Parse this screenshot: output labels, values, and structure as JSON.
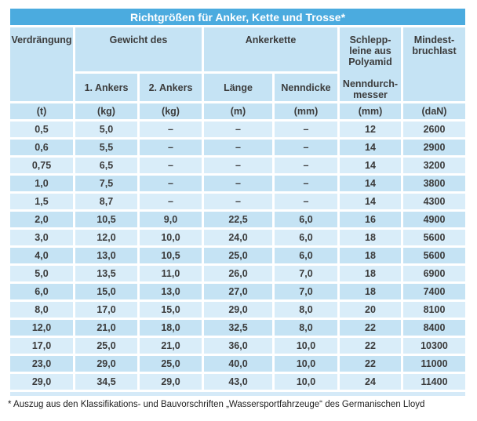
{
  "colors": {
    "title_bar": "#4babdf",
    "header_fill": "#c5e3f4",
    "row_light": "#d9edf9",
    "row_dark": "#c5e3f4",
    "bottom_strip": "#d5eaf8",
    "title_text": "#ffffff",
    "body_text": "#3b3b3b"
  },
  "table": {
    "title": "Richtgrößen für Anker, Kette und Trosse*",
    "header": {
      "displacement": "Verdrängung",
      "weight_group": "Gewicht des",
      "anchor1": "1. Ankers",
      "anchor2": "2. Ankers",
      "chain_group": "Ankerkette",
      "length": "Länge",
      "thickness": "Nenndicke",
      "towline": "Schlepp-\nleine aus\nPolyamid\n\nNenndurch-\nmesser",
      "breaking_load": "Mindest-\nbruchlast"
    },
    "units": [
      "(t)",
      "(kg)",
      "(kg)",
      "(m)",
      "(mm)",
      "(mm)",
      "(daN)"
    ],
    "rows": [
      [
        "0,5",
        "5,0",
        "–",
        "–",
        "–",
        "12",
        "2600"
      ],
      [
        "0,6",
        "5,5",
        "–",
        "–",
        "–",
        "14",
        "2900"
      ],
      [
        "0,75",
        "6,5",
        "–",
        "–",
        "–",
        "14",
        "3200"
      ],
      [
        "1,0",
        "7,5",
        "–",
        "–",
        "–",
        "14",
        "3800"
      ],
      [
        "1,5",
        "8,7",
        "–",
        "–",
        "–",
        "14",
        "4300"
      ],
      [
        "2,0",
        "10,5",
        "9,0",
        "22,5",
        "6,0",
        "16",
        "4900"
      ],
      [
        "3,0",
        "12,0",
        "10,0",
        "24,0",
        "6,0",
        "18",
        "5600"
      ],
      [
        "4,0",
        "13,0",
        "10,5",
        "25,0",
        "6,0",
        "18",
        "5600"
      ],
      [
        "5,0",
        "13,5",
        "11,0",
        "26,0",
        "7,0",
        "18",
        "6900"
      ],
      [
        "6,0",
        "15,0",
        "13,0",
        "27,0",
        "7,0",
        "18",
        "7400"
      ],
      [
        "8,0",
        "17,0",
        "15,0",
        "29,0",
        "8,0",
        "20",
        "8100"
      ],
      [
        "12,0",
        "21,0",
        "18,0",
        "32,5",
        "8,0",
        "22",
        "8400"
      ],
      [
        "17,0",
        "25,0",
        "21,0",
        "36,0",
        "10,0",
        "22",
        "10300"
      ],
      [
        "23,0",
        "29,0",
        "25,0",
        "40,0",
        "10,0",
        "22",
        "11000"
      ],
      [
        "29,0",
        "34,5",
        "29,0",
        "43,0",
        "10,0",
        "24",
        "11400"
      ]
    ]
  },
  "footnote": "* Auszug aus den Klassifikations- und Bauvorschriften „Wassersportfahrzeuge“ des Germanischen Lloyd"
}
